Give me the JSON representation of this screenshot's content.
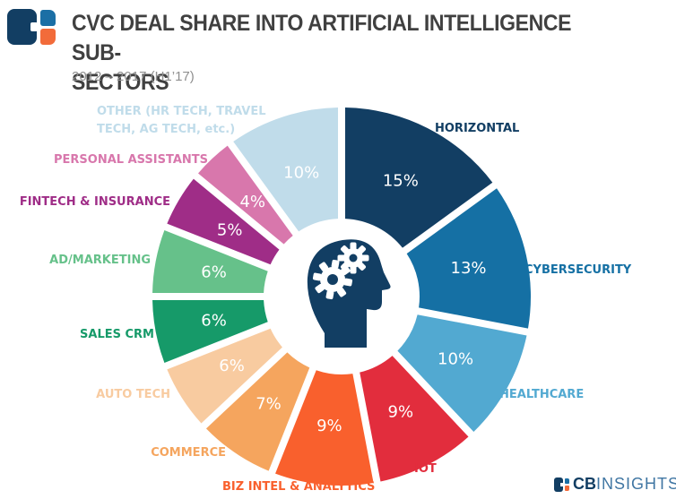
{
  "header": {
    "title_line1": "CVC DEAL SHARE INTO ARTIFICIAL INTELLIGENCE SUB-",
    "title_line2": "SECTORS",
    "subtitle": "2012 – 2017 (H1’17)"
  },
  "chart_data": {
    "type": "pie",
    "variant": "donut",
    "title": "CVC Deal Share Into Artificial Intelligence Sub-Sectors",
    "period": "2012 – 2017 (H1'17)",
    "unit": "%",
    "start_angle_deg": 0,
    "direction": "clockwise",
    "value_label_color": "#ffffff",
    "center_icon": "head-with-gears",
    "segments": [
      {
        "label": "HORIZONTAL",
        "value": 15,
        "color": "#123e63"
      },
      {
        "label": "CYBERSECURITY",
        "value": 13,
        "color": "#1570a4"
      },
      {
        "label": "HEALTHCARE",
        "value": 10,
        "color": "#52a9d1"
      },
      {
        "label": "IOT",
        "value": 9,
        "color": "#e22d3d"
      },
      {
        "label": "BIZ INTEL & ANALYTICS",
        "value": 9,
        "color": "#f9602d"
      },
      {
        "label": "COMMERCE",
        "value": 7,
        "color": "#f5a55e"
      },
      {
        "label": "AUTO TECH",
        "value": 6,
        "color": "#f8cba0"
      },
      {
        "label": "SALES CRM",
        "value": 6,
        "color": "#169a69"
      },
      {
        "label": "AD/MARKETING",
        "value": 6,
        "color": "#66c18a"
      },
      {
        "label": "FINTECH & INSURANCE",
        "value": 5,
        "color": "#9f2d87"
      },
      {
        "label": "PERSONAL ASSISTANTS",
        "value": 4,
        "color": "#d877ac"
      },
      {
        "label": "OTHER (HR TECH, TRAVEL TECH, AG TECH, etc.)",
        "value": 10,
        "color": "#c0dcea"
      }
    ]
  },
  "footer": {
    "brand_bold": "CB",
    "brand_light": "INSIGHTS"
  }
}
